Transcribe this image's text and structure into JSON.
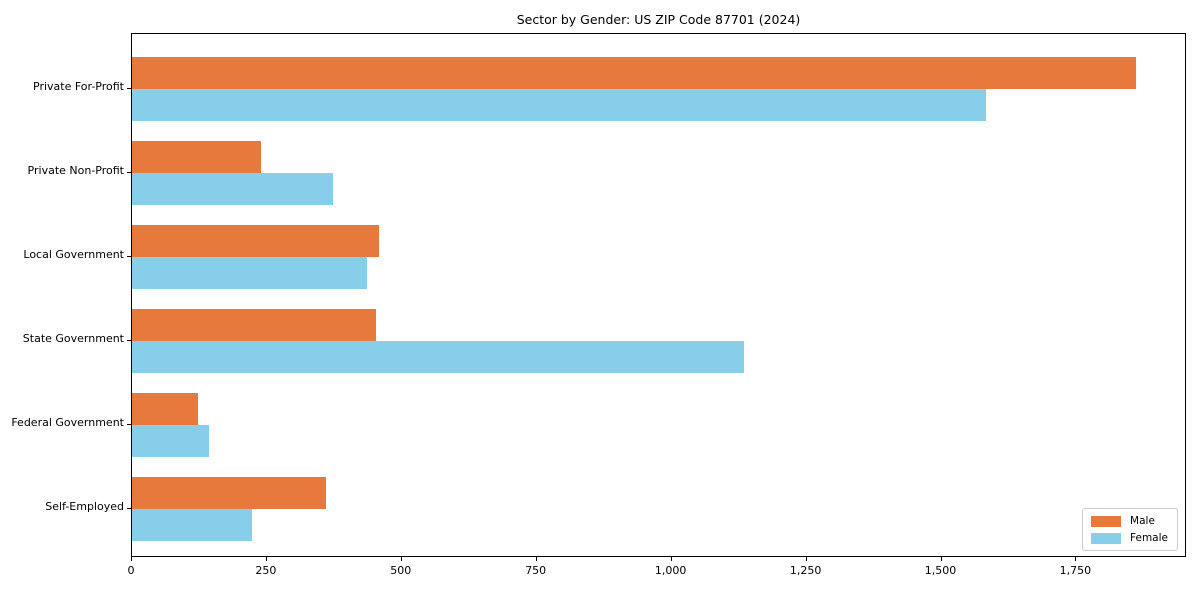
{
  "chart_data": {
    "type": "bar",
    "orientation": "horizontal",
    "title": "Sector by Gender: US ZIP Code 87701 (2024)",
    "categories": [
      "Private For-Profit",
      "Private Non-Profit",
      "Local Government",
      "State Government",
      "Federal Government",
      "Self-Employed"
    ],
    "series": [
      {
        "name": "Male",
        "color": "#e8793c",
        "values": [
          1860,
          239,
          457,
          452,
          123,
          359
        ]
      },
      {
        "name": "Female",
        "color": "#87ceeb",
        "values": [
          1583,
          373,
          436,
          1134,
          143,
          222
        ]
      }
    ],
    "xlabel": "",
    "ylabel": "",
    "xlim": [
      0,
      1955
    ],
    "xticks": [
      0,
      250,
      500,
      750,
      1000,
      1250,
      1500,
      1750
    ],
    "xtick_labels": [
      "0",
      "250",
      "500",
      "750",
      "1,000",
      "1,250",
      "1,500",
      "1,750"
    ],
    "grid": false,
    "legend_position": "lower right"
  },
  "colors": {
    "male": "#e8793c",
    "female": "#87ceeb",
    "spine": "#000000",
    "legend_border": "#cccccc",
    "background": "#ffffff"
  }
}
